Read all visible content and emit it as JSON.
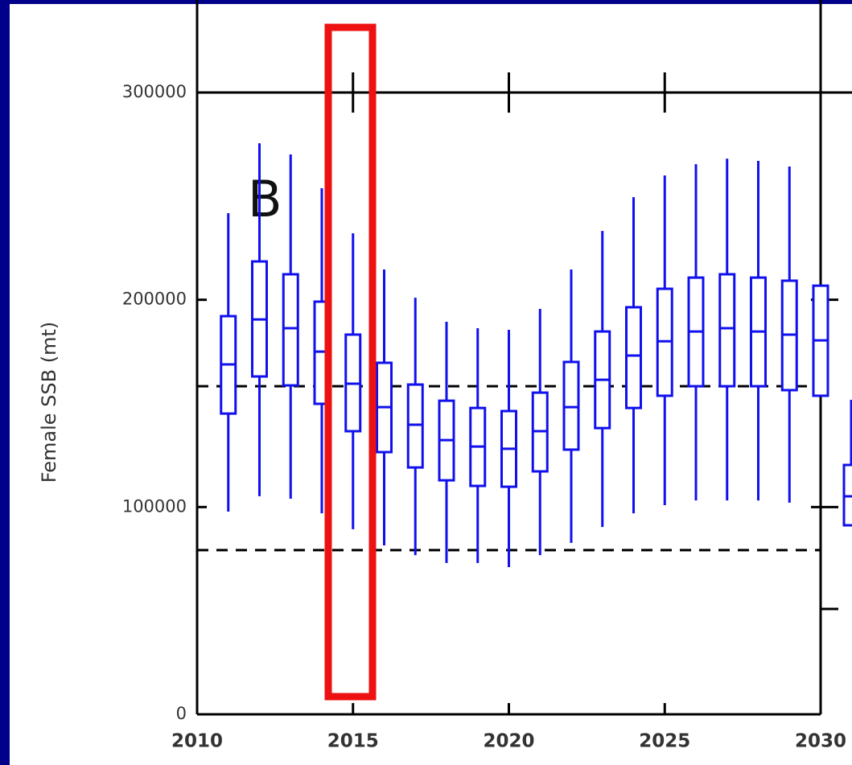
{
  "chart_data": {
    "type": "box",
    "annotation": "B",
    "y_label": "Female SSB (mt)",
    "xlim": [
      2010,
      2030
    ],
    "xticks": [
      2010,
      2015,
      2020,
      2025,
      2030
    ],
    "ylim": [
      0,
      300000
    ],
    "yticks": [
      0,
      100000,
      200000,
      300000
    ],
    "color": "#1010ee",
    "reference_lines": [
      158300,
      79200
    ],
    "x": [
      2011,
      2012,
      2013,
      2014,
      2015,
      2016,
      2017,
      2018,
      2019,
      2020,
      2021,
      2022,
      2023,
      2024,
      2025,
      2026,
      2027,
      2028,
      2029,
      2030
    ],
    "low": [
      97800,
      105200,
      104000,
      97000,
      89300,
      81500,
      76800,
      73000,
      73000,
      71000,
      76800,
      82700,
      90400,
      97000,
      100900,
      103200,
      103200,
      103200,
      102100,
      null
    ],
    "q1": [
      145100,
      163000,
      158700,
      149800,
      136600,
      126500,
      119100,
      112900,
      110200,
      109800,
      117200,
      127700,
      138100,
      147800,
      153700,
      158300,
      158300,
      158300,
      156400,
      153700
    ],
    "median": [
      168800,
      190500,
      186300,
      175000,
      159500,
      148200,
      139700,
      132300,
      129200,
      128100,
      136600,
      148200,
      161400,
      173100,
      180000,
      184700,
      186300,
      184700,
      183200,
      180400
    ],
    "q3": [
      192100,
      218500,
      212300,
      199100,
      183200,
      169600,
      159100,
      151300,
      147800,
      146300,
      155200,
      170000,
      184700,
      196400,
      205300,
      210700,
      212300,
      210700,
      209200,
      206800
    ],
    "high": [
      241800,
      275500,
      270100,
      253800,
      232100,
      214600,
      201000,
      189400,
      186300,
      185500,
      195600,
      214600,
      233200,
      249500,
      260000,
      265400,
      268100,
      267000,
      264300,
      null
    ]
  }
}
